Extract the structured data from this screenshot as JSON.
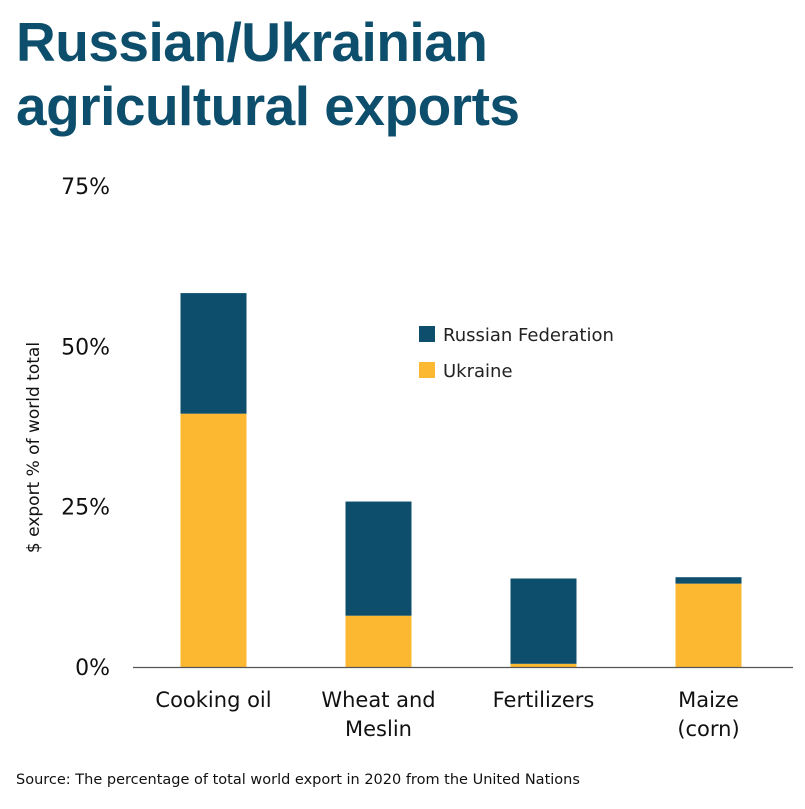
{
  "chart_data": {
    "type": "bar",
    "stacked": true,
    "title": "Russian/Ukrainian agricultural exports",
    "xlabel": "",
    "ylabel": "$ export % of world total",
    "ylim": [
      0,
      75
    ],
    "yticks": [
      0,
      25,
      50,
      75
    ],
    "ytick_labels": [
      "0%",
      "25%",
      "50%",
      "75%"
    ],
    "grid": false,
    "legend_position": "top-right",
    "categories": [
      "Cooking oil",
      "Wheat and Meslin",
      "Fertilizers",
      "Maize (corn)"
    ],
    "category_lines": [
      [
        "Cooking oil"
      ],
      [
        "Wheat and",
        "Meslin"
      ],
      [
        "Fertilizers"
      ],
      [
        "Maize",
        "(corn)"
      ]
    ],
    "series": [
      {
        "name": "Ukraine",
        "color": "#fbb830",
        "values": [
          39.5,
          8,
          0.5,
          13
        ]
      },
      {
        "name": "Russian Federation",
        "color": "#0c4e6b",
        "values": [
          18.8,
          17.8,
          13.3,
          1
        ]
      }
    ],
    "source": "Source: The percentage of total world export in 2020 from the United Nations"
  }
}
